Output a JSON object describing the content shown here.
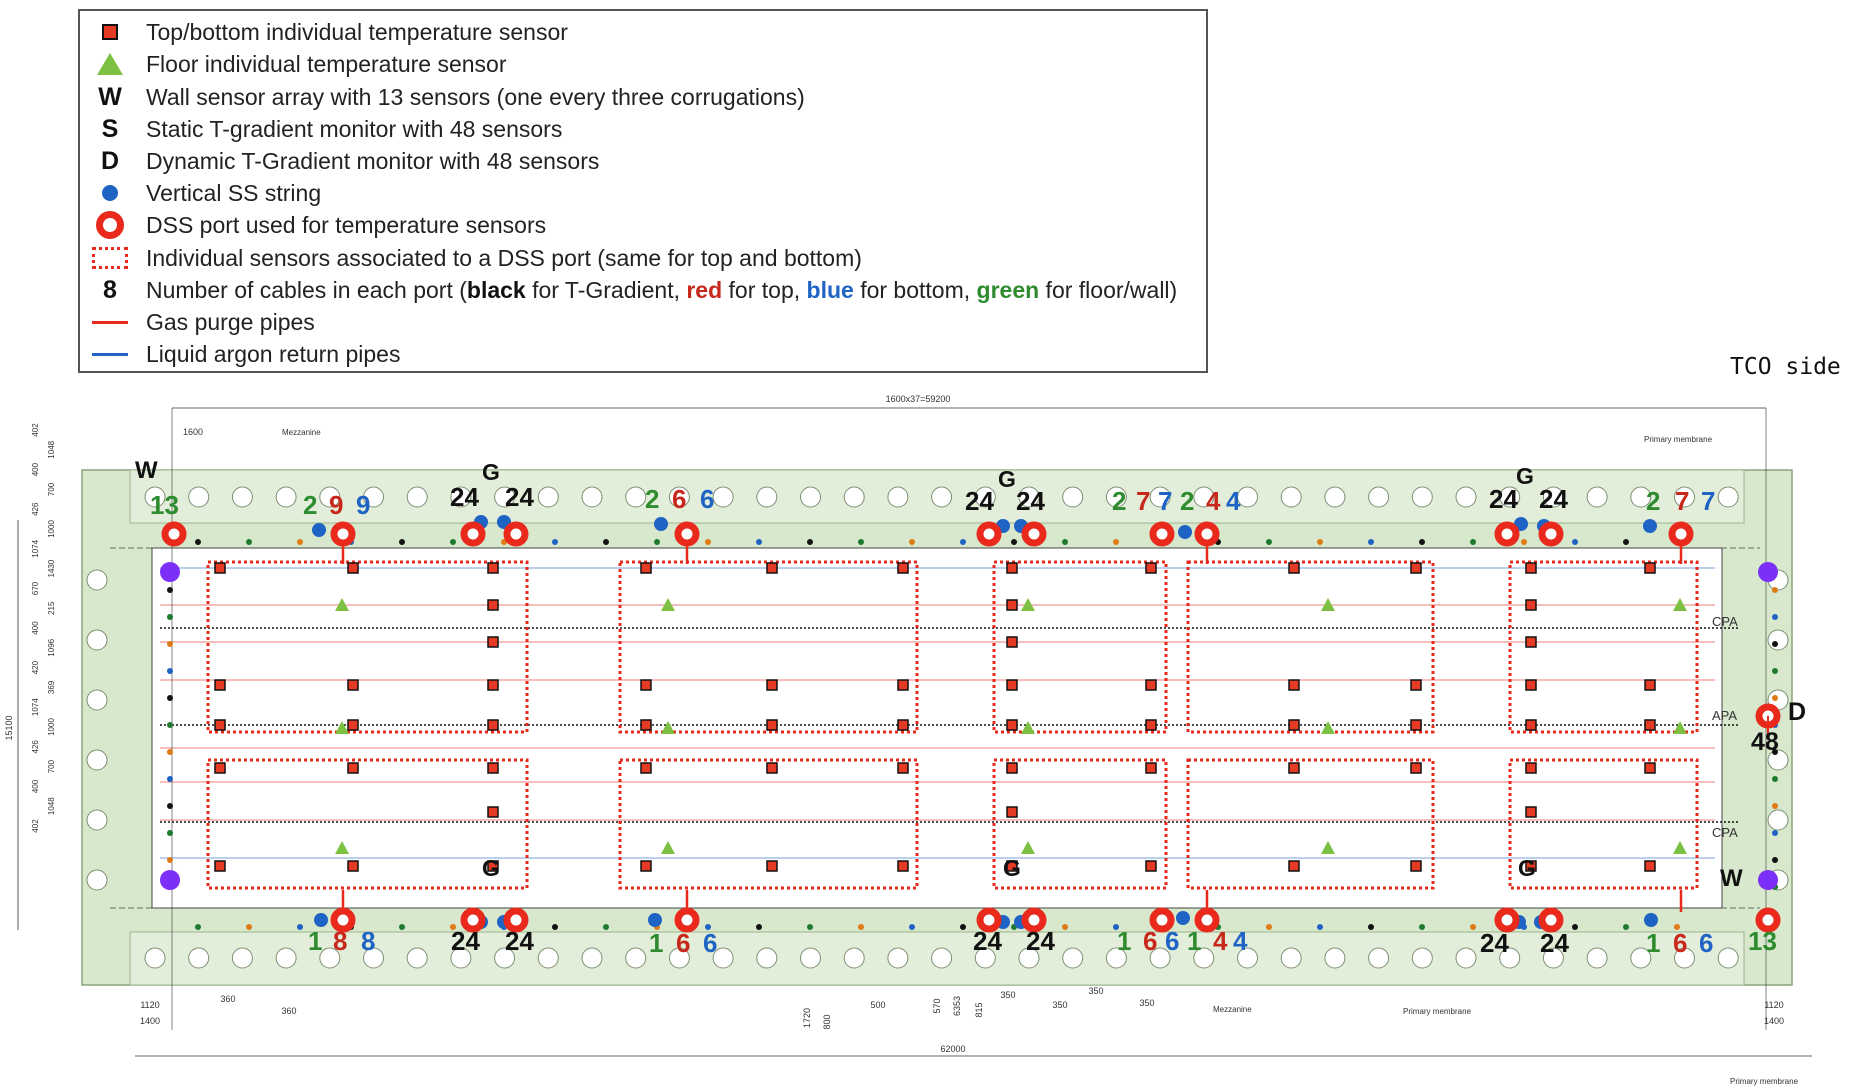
{
  "legend": {
    "items": [
      {
        "symbol": "red-square",
        "text": "Top/bottom individual temperature sensor"
      },
      {
        "symbol": "green-triangle",
        "text": "Floor individual temperature sensor"
      },
      {
        "symbol": "letter",
        "glyph": "W",
        "text": "Wall sensor array with 13 sensors (one every three corrugations)"
      },
      {
        "symbol": "letter",
        "glyph": "S",
        "text": "Static T-gradient monitor with 48 sensors"
      },
      {
        "symbol": "letter",
        "glyph": "D",
        "text": "Dynamic T-Gradient monitor with 48 sensors"
      },
      {
        "symbol": "blue-dot",
        "text": "Vertical SS string"
      },
      {
        "symbol": "red-ring",
        "text": "DSS port used for temperature sensors"
      },
      {
        "symbol": "dotted-red-box",
        "text": "Individual sensors associated to a DSS port (same for top and bottom)"
      },
      {
        "symbol": "letter",
        "glyph": "8",
        "text_prefix": "Number of cables in each port (",
        "kw_black": "black",
        "text_black": " for T-Gradient, ",
        "kw_red": "red",
        "text_red": " for top, ",
        "kw_blue": "blue",
        "text_blue": " for bottom, ",
        "kw_green": "green",
        "text_green": " for floor/wall)"
      },
      {
        "symbol": "red-line",
        "text": "Gas purge pipes"
      },
      {
        "symbol": "blue-line",
        "text": "Liquid argon return pipes"
      }
    ]
  },
  "side_label": "TCO side",
  "colors": {
    "sensor_red": "#e53a24",
    "floor_green": "#7cc142",
    "ss_blue": "#1f63c4",
    "dss_red": "#e8291c",
    "cryostat_green": "#d7e8cc",
    "purge_red": "#e8291c",
    "lar_blue": "#1f63c4",
    "wall_purple": "#7b2ff7",
    "count_green": "#2e8b2e",
    "count_red": "#c8281c",
    "count_blue": "#1f63c4",
    "count_black": "#111111"
  },
  "plan": {
    "plane_labels": [
      "CPA",
      "APA",
      "CPA"
    ],
    "dimensions": {
      "top_span": "1600x37=59200",
      "top_first": "1600",
      "total_length": "62000",
      "left_1120": "1120",
      "left_1400": "1400",
      "right_1120": "1120",
      "right_1400": "1400",
      "bottom_360a": "360",
      "bottom_360b": "360",
      "bottom_500": "500",
      "bottom_1720": "1720",
      "bottom_800": "800",
      "bottom_570": "570",
      "bottom_6353": "6353",
      "bottom_815": "815",
      "bottom_350a": "350",
      "bottom_350b": "350",
      "bottom_350c": "350",
      "bottom_350d": "350",
      "height_15100": "15100",
      "left_vertical": [
        "402",
        "1048",
        "400",
        "700",
        "426",
        "1000",
        "1074",
        "1430",
        "670",
        "215",
        "400",
        "1096",
        "420",
        "369",
        "1074",
        "1000",
        "426",
        "700",
        "400",
        "1048",
        "402"
      ]
    },
    "annotations": {
      "mezzanine_top": "Mezzanine",
      "mezzanine_bottom": "Mezzanine",
      "primary_membrane_top": "Primary membrane",
      "primary_membrane_bottom": "Primary membrane",
      "primary_membrane_corner": "Primary membrane"
    },
    "top_counts": [
      {
        "group": "p1",
        "items": [
          {
            "t": "13",
            "c": "green"
          }
        ]
      },
      {
        "group": "p2",
        "items": [
          {
            "t": "2",
            "c": "green"
          },
          {
            "t": "9",
            "c": "red"
          },
          {
            "t": "9",
            "c": "blue"
          }
        ]
      },
      {
        "group": "p3",
        "items": [
          {
            "t": "24",
            "c": "black"
          },
          {
            "t": "24",
            "c": "black"
          }
        ]
      },
      {
        "group": "p4",
        "items": [
          {
            "t": "2",
            "c": "green"
          },
          {
            "t": "6",
            "c": "red"
          },
          {
            "t": "6",
            "c": "blue"
          }
        ]
      },
      {
        "group": "p5",
        "items": [
          {
            "t": "24",
            "c": "black"
          },
          {
            "t": "24",
            "c": "black"
          }
        ]
      },
      {
        "group": "p6",
        "items": [
          {
            "t": "2",
            "c": "green"
          },
          {
            "t": "7",
            "c": "red"
          },
          {
            "t": "7",
            "c": "blue"
          }
        ]
      },
      {
        "group": "p7",
        "items": [
          {
            "t": "2",
            "c": "green"
          },
          {
            "t": "4",
            "c": "red"
          },
          {
            "t": "4",
            "c": "blue"
          }
        ]
      },
      {
        "group": "p8",
        "items": [
          {
            "t": "24",
            "c": "black"
          },
          {
            "t": "24",
            "c": "black"
          }
        ]
      },
      {
        "group": "p9",
        "items": [
          {
            "t": "2",
            "c": "green"
          },
          {
            "t": "7",
            "c": "red"
          },
          {
            "t": "7",
            "c": "blue"
          }
        ]
      }
    ],
    "bottom_counts": [
      {
        "group": "q1",
        "items": [
          {
            "t": "1",
            "c": "green"
          },
          {
            "t": "8",
            "c": "red"
          },
          {
            "t": "8",
            "c": "blue"
          }
        ]
      },
      {
        "group": "q2",
        "items": [
          {
            "t": "24",
            "c": "black"
          },
          {
            "t": "24",
            "c": "black"
          }
        ]
      },
      {
        "group": "q3",
        "items": [
          {
            "t": "1",
            "c": "green"
          },
          {
            "t": "6",
            "c": "red"
          },
          {
            "t": "6",
            "c": "blue"
          }
        ]
      },
      {
        "group": "q4",
        "items": [
          {
            "t": "24",
            "c": "black"
          },
          {
            "t": "24",
            "c": "black"
          }
        ]
      },
      {
        "group": "q5",
        "items": [
          {
            "t": "1",
            "c": "green"
          },
          {
            "t": "6",
            "c": "red"
          },
          {
            "t": "6",
            "c": "blue"
          }
        ]
      },
      {
        "group": "q6",
        "items": [
          {
            "t": "1",
            "c": "green"
          },
          {
            "t": "4",
            "c": "red"
          },
          {
            "t": "4",
            "c": "blue"
          }
        ]
      },
      {
        "group": "q7",
        "items": [
          {
            "t": "24",
            "c": "black"
          },
          {
            "t": "24",
            "c": "black"
          }
        ]
      },
      {
        "group": "q8",
        "items": [
          {
            "t": "1",
            "c": "green"
          },
          {
            "t": "6",
            "c": "red"
          },
          {
            "t": "6",
            "c": "blue"
          }
        ]
      },
      {
        "group": "q9",
        "items": [
          {
            "t": "13",
            "c": "green"
          }
        ]
      }
    ],
    "letters": {
      "w_top_left": "W",
      "w_bottom_right": "W",
      "g_top": [
        "G",
        "G",
        "G"
      ],
      "g_bottom": [
        "G",
        "G",
        "G"
      ],
      "d_label": "D",
      "d_count": "48"
    }
  }
}
